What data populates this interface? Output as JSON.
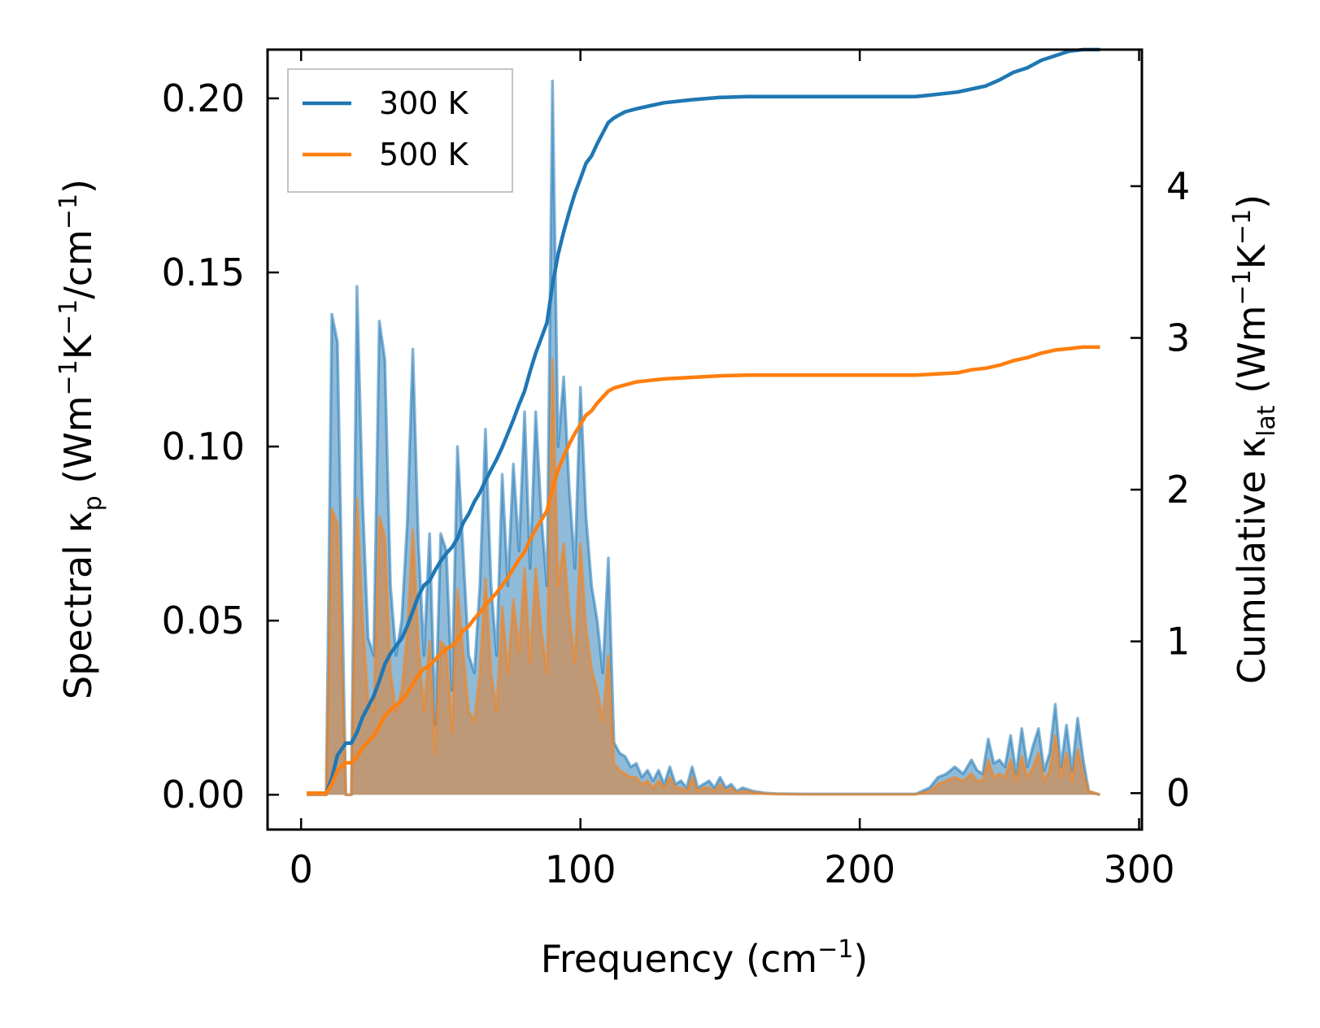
{
  "chart_data": {
    "type": "line",
    "title": "",
    "xlabel": {
      "base": "Frequency (cm",
      "sup": "−1",
      "tail": ")"
    },
    "ylabel_left": "Spectral κp (Wm−1K−1/cm−1)",
    "ylabel_left_parts": {
      "a": "Spectral κ",
      "sub": "p",
      "b": " (Wm",
      "sup1": "−1",
      "c": "K",
      "sup2": "−1",
      "d": "/cm",
      "sup3": "−1",
      "e": ")"
    },
    "ylabel_right": "Cumulative κlat (Wm−1K−1)",
    "ylabel_right_parts": {
      "a": "Cumulative κ",
      "sub": "lat",
      "b": " (Wm",
      "sup1": "−1",
      "c": "K",
      "sup2": "−1",
      "d": ")"
    },
    "xlim": [
      -12,
      301
    ],
    "ylim_left": [
      -0.01,
      0.214
    ],
    "ylim_right": [
      -0.24,
      4.9
    ],
    "x_ticks": [
      0,
      100,
      200,
      300
    ],
    "x_tick_labels": [
      "0",
      "100",
      "200",
      "300"
    ],
    "y_left_ticks": [
      0.0,
      0.05,
      0.1,
      0.15,
      0.2
    ],
    "y_left_tick_labels": [
      "0.00",
      "0.05",
      "0.10",
      "0.15",
      "0.20"
    ],
    "y_right_ticks": [
      0,
      1,
      2,
      3,
      4
    ],
    "y_right_tick_labels": [
      "0",
      "1",
      "2",
      "3",
      "4"
    ],
    "legend": {
      "position": "top-left",
      "entries": [
        {
          "label": "300 K",
          "color": "#1f77b4"
        },
        {
          "label": "500 K",
          "color": "#ff7f0e"
        }
      ]
    },
    "series": [
      {
        "name": "300 K",
        "color": "#1f77b4",
        "fill_color": "#1f77b4",
        "spectral": {
          "x": [
            2,
            9,
            11,
            13,
            16,
            18,
            20,
            22,
            24,
            26,
            28,
            30,
            32,
            34,
            36,
            38,
            40,
            42,
            44,
            46,
            48,
            50,
            52,
            54,
            56,
            58,
            60,
            62,
            64,
            66,
            68,
            70,
            72,
            74,
            76,
            78,
            80,
            82,
            84,
            86,
            88,
            90,
            92,
            94,
            96,
            98,
            100,
            102,
            104,
            106,
            108,
            110,
            112,
            114,
            116,
            118,
            120,
            122,
            124,
            126,
            128,
            130,
            132,
            134,
            136,
            138,
            140,
            142,
            144,
            146,
            148,
            150,
            152,
            154,
            156,
            158,
            160,
            162,
            164,
            166,
            170,
            180,
            190,
            200,
            210,
            220,
            225,
            228,
            231,
            234,
            237,
            240,
            242,
            244,
            246,
            248,
            250,
            252,
            254,
            256,
            258,
            260,
            262,
            264,
            266,
            268,
            270,
            272,
            274,
            276,
            278,
            280,
            282,
            286
          ],
          "y": [
            0,
            0,
            0.138,
            0.13,
            0,
            0,
            0.146,
            0.085,
            0.045,
            0.04,
            0.136,
            0.125,
            0.06,
            0.04,
            0.05,
            0.078,
            0.128,
            0.072,
            0.04,
            0.075,
            0.02,
            0.075,
            0.07,
            0.03,
            0.1,
            0.07,
            0.04,
            0.035,
            0.06,
            0.105,
            0.06,
            0.04,
            0.092,
            0.06,
            0.095,
            0.07,
            0.11,
            0.065,
            0.11,
            0.08,
            0.06,
            0.205,
            0.1,
            0.12,
            0.088,
            0.065,
            0.117,
            0.08,
            0.06,
            0.05,
            0.035,
            0.068,
            0.015,
            0.012,
            0.011,
            0.008,
            0.009,
            0.005,
            0.007,
            0.004,
            0.007,
            0.003,
            0.008,
            0.003,
            0.004,
            0.002,
            0.008,
            0.002,
            0.003,
            0.004,
            0.002,
            0.005,
            0.002,
            0.003,
            0.001,
            0.002,
            0.0015,
            0.001,
            0.0008,
            0.0005,
            0.0003,
            0.0002,
            0.0002,
            0.0002,
            0.0002,
            0.0002,
            0.002,
            0.005,
            0.006,
            0.008,
            0.006,
            0.01,
            0.007,
            0.006,
            0.016,
            0.009,
            0.01,
            0.008,
            0.017,
            0.006,
            0.019,
            0.008,
            0.014,
            0.019,
            0.007,
            0.012,
            0.026,
            0.008,
            0.02,
            0.007,
            0.022,
            0.01,
            0.001,
            0
          ]
        },
        "cumulative": {
          "x": [
            2,
            9,
            11,
            13,
            16,
            18,
            20,
            22,
            24,
            26,
            28,
            30,
            32,
            34,
            36,
            38,
            40,
            42,
            44,
            46,
            48,
            50,
            52,
            54,
            56,
            58,
            60,
            62,
            64,
            66,
            68,
            70,
            72,
            74,
            76,
            78,
            80,
            82,
            84,
            86,
            88,
            90,
            92,
            94,
            96,
            98,
            100,
            102,
            104,
            106,
            108,
            110,
            112,
            114,
            116,
            120,
            125,
            130,
            140,
            150,
            160,
            170,
            180,
            200,
            220,
            225,
            235,
            240,
            245,
            250,
            255,
            260,
            265,
            270,
            275,
            280,
            286
          ],
          "y": [
            0,
            0,
            0.1,
            0.25,
            0.33,
            0.33,
            0.4,
            0.5,
            0.57,
            0.64,
            0.74,
            0.85,
            0.92,
            0.97,
            1.02,
            1.1,
            1.2,
            1.3,
            1.37,
            1.4,
            1.47,
            1.53,
            1.58,
            1.62,
            1.68,
            1.78,
            1.84,
            1.92,
            1.98,
            2.06,
            2.13,
            2.2,
            2.28,
            2.37,
            2.46,
            2.56,
            2.65,
            2.78,
            2.9,
            3.0,
            3.1,
            3.35,
            3.55,
            3.7,
            3.83,
            3.95,
            4.05,
            4.15,
            4.2,
            4.28,
            4.35,
            4.42,
            4.45,
            4.47,
            4.49,
            4.51,
            4.53,
            4.55,
            4.57,
            4.585,
            4.59,
            4.59,
            4.59,
            4.59,
            4.59,
            4.6,
            4.62,
            4.64,
            4.66,
            4.7,
            4.75,
            4.78,
            4.83,
            4.86,
            4.89,
            4.9,
            4.9
          ]
        }
      },
      {
        "name": "500 K",
        "color": "#ff7f0e",
        "fill_color": "#d18a4f",
        "spectral": {
          "x": [
            2,
            9,
            11,
            13,
            16,
            18,
            20,
            22,
            24,
            26,
            28,
            30,
            32,
            34,
            36,
            38,
            40,
            42,
            44,
            46,
            48,
            50,
            52,
            54,
            56,
            58,
            60,
            62,
            64,
            66,
            68,
            70,
            72,
            74,
            76,
            78,
            80,
            82,
            84,
            86,
            88,
            90,
            92,
            94,
            96,
            98,
            100,
            102,
            104,
            106,
            108,
            110,
            112,
            114,
            116,
            118,
            120,
            122,
            124,
            126,
            128,
            130,
            132,
            134,
            136,
            138,
            140,
            142,
            144,
            146,
            148,
            150,
            152,
            154,
            156,
            158,
            160,
            162,
            164,
            166,
            170,
            180,
            190,
            200,
            210,
            220,
            225,
            228,
            231,
            234,
            237,
            240,
            242,
            244,
            246,
            248,
            250,
            252,
            254,
            256,
            258,
            260,
            262,
            264,
            266,
            268,
            270,
            272,
            274,
            276,
            278,
            280,
            282,
            286
          ],
          "y": [
            0,
            0,
            0.082,
            0.078,
            0,
            0,
            0.085,
            0.05,
            0.027,
            0.024,
            0.08,
            0.074,
            0.035,
            0.024,
            0.03,
            0.046,
            0.076,
            0.043,
            0.024,
            0.044,
            0.012,
            0.044,
            0.042,
            0.018,
            0.059,
            0.041,
            0.024,
            0.021,
            0.035,
            0.062,
            0.035,
            0.024,
            0.054,
            0.035,
            0.056,
            0.041,
            0.065,
            0.038,
            0.065,
            0.047,
            0.035,
            0.125,
            0.06,
            0.072,
            0.052,
            0.038,
            0.072,
            0.048,
            0.036,
            0.03,
            0.021,
            0.04,
            0.009,
            0.007,
            0.006,
            0.005,
            0.005,
            0.003,
            0.004,
            0.002,
            0.004,
            0.002,
            0.005,
            0.002,
            0.002,
            0.001,
            0.005,
            0.001,
            0.002,
            0.002,
            0.001,
            0.003,
            0.001,
            0.002,
            0.0006,
            0.001,
            0.001,
            0.0006,
            0.0005,
            0.0003,
            0.0002,
            0.0001,
            0.0001,
            0.0001,
            0.0001,
            0.0001,
            0.001,
            0.003,
            0.004,
            0.005,
            0.004,
            0.006,
            0.004,
            0.004,
            0.01,
            0.005,
            0.006,
            0.005,
            0.01,
            0.004,
            0.011,
            0.005,
            0.008,
            0.012,
            0.004,
            0.007,
            0.017,
            0.005,
            0.012,
            0.004,
            0.013,
            0.006,
            0.001,
            0
          ]
        },
        "cumulative": {
          "x": [
            2,
            9,
            11,
            13,
            16,
            18,
            20,
            22,
            24,
            26,
            28,
            30,
            32,
            34,
            36,
            38,
            40,
            42,
            44,
            46,
            48,
            50,
            52,
            54,
            56,
            58,
            60,
            62,
            64,
            66,
            68,
            70,
            72,
            74,
            76,
            78,
            80,
            82,
            84,
            86,
            88,
            90,
            92,
            94,
            96,
            98,
            100,
            102,
            104,
            106,
            108,
            110,
            112,
            114,
            116,
            120,
            125,
            130,
            140,
            150,
            160,
            170,
            180,
            200,
            220,
            225,
            235,
            240,
            245,
            250,
            255,
            260,
            265,
            270,
            275,
            280,
            286
          ],
          "y": [
            0,
            0,
            0.06,
            0.15,
            0.2,
            0.2,
            0.24,
            0.3,
            0.34,
            0.38,
            0.44,
            0.51,
            0.55,
            0.58,
            0.61,
            0.66,
            0.72,
            0.78,
            0.82,
            0.84,
            0.88,
            0.92,
            0.95,
            0.97,
            1.01,
            1.07,
            1.1,
            1.15,
            1.19,
            1.24,
            1.28,
            1.32,
            1.37,
            1.42,
            1.48,
            1.54,
            1.59,
            1.67,
            1.74,
            1.8,
            1.86,
            2.01,
            2.13,
            2.22,
            2.3,
            2.37,
            2.43,
            2.49,
            2.52,
            2.57,
            2.61,
            2.65,
            2.67,
            2.68,
            2.69,
            2.71,
            2.72,
            2.73,
            2.74,
            2.75,
            2.755,
            2.755,
            2.755,
            2.755,
            2.755,
            2.76,
            2.77,
            2.79,
            2.8,
            2.82,
            2.85,
            2.87,
            2.9,
            2.92,
            2.93,
            2.94,
            2.94
          ]
        }
      }
    ]
  }
}
